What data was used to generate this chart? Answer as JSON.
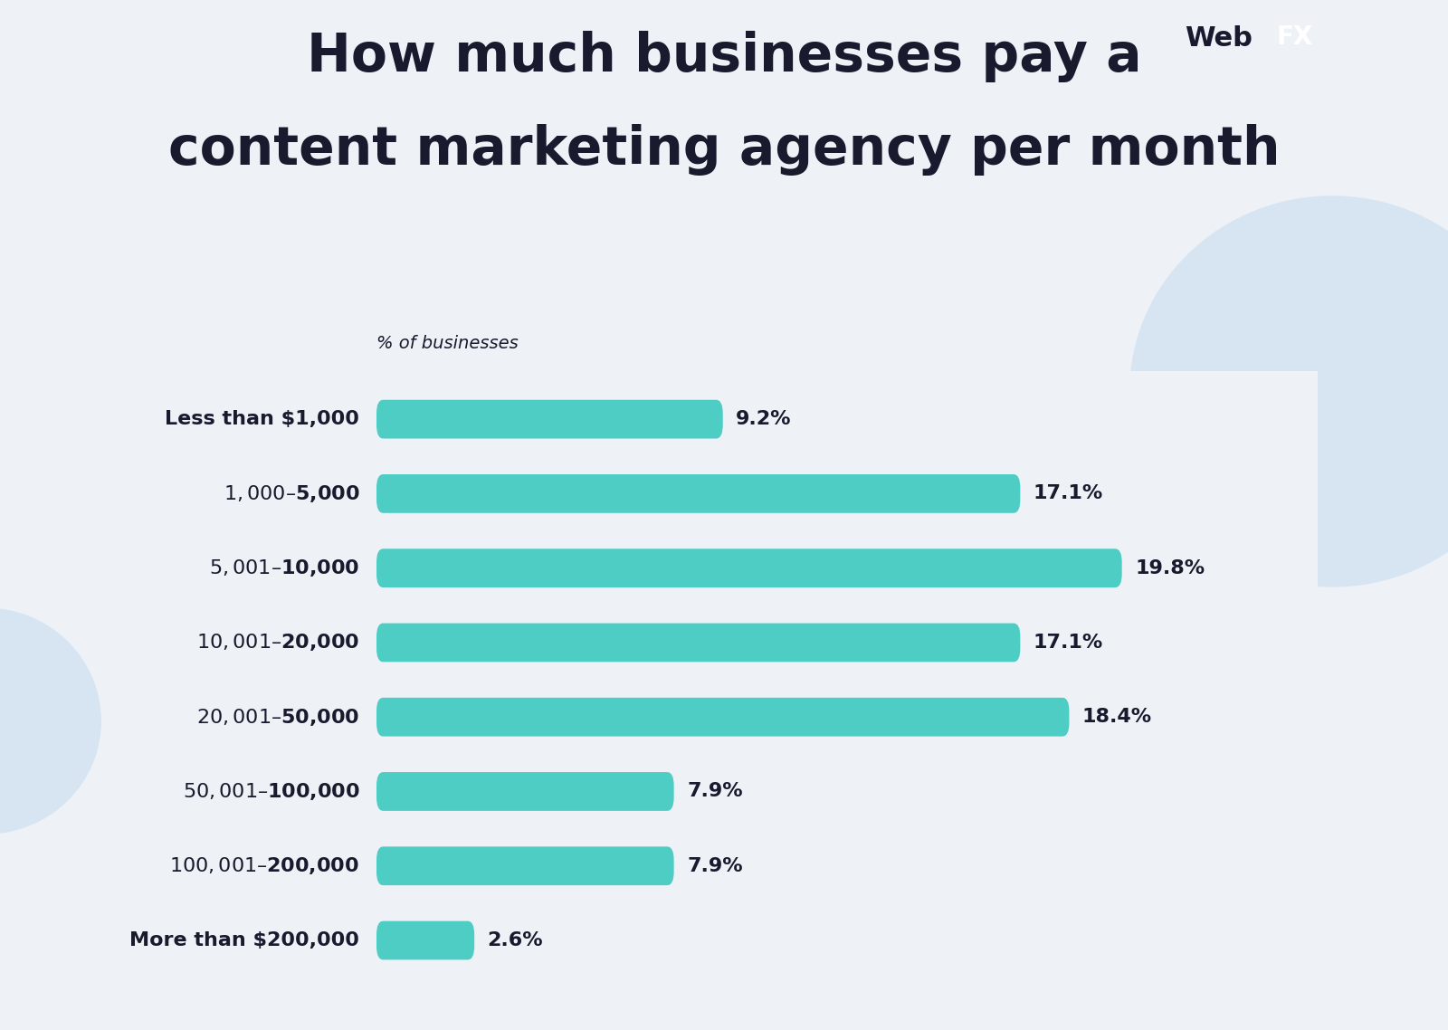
{
  "title_line1": "How much businesses pay a",
  "title_line2": "content marketing agency per month",
  "xlabel": "% of businesses",
  "categories": [
    "Less than $1,000",
    "$1,000 – $5,000",
    "$5,001 – $10,000",
    "$10,001 – $20,000",
    "$20,001 – $50,000",
    "$50,001 – $100,000",
    "$100,001 – $200,000",
    "More than $200,000"
  ],
  "values": [
    9.2,
    17.1,
    19.8,
    17.1,
    18.4,
    7.9,
    7.9,
    2.6
  ],
  "bar_color": "#4ecdc4",
  "bar_height": 0.52,
  "bg_color": "#eef2f7",
  "text_color": "#1a1a2e",
  "label_fontsize": 16,
  "value_fontsize": 16,
  "title_fontsize": 42,
  "xlabel_fontsize": 14,
  "xlim": [
    0,
    25
  ],
  "blob_color": "#c8ddf0",
  "blob_alpha": 0.6
}
